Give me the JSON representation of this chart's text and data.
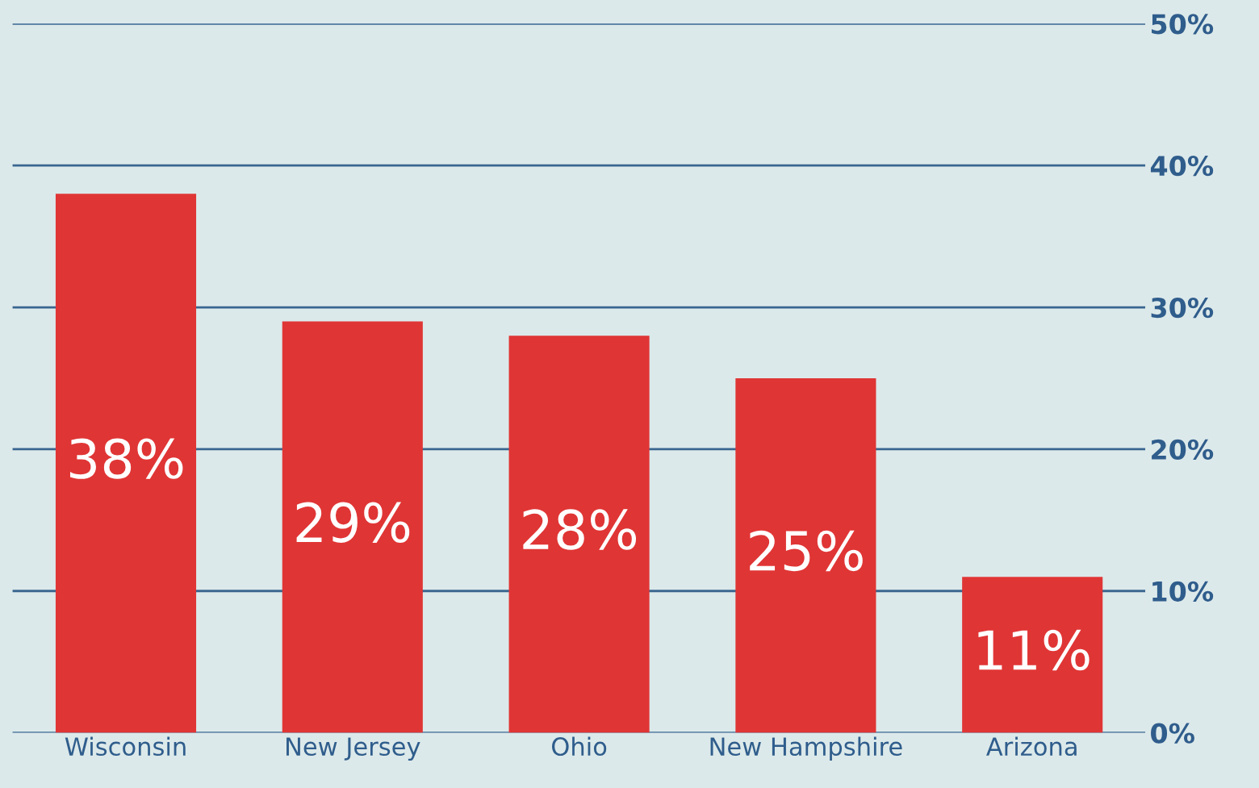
{
  "chart_data": {
    "type": "bar",
    "categories": [
      "Wisconsin",
      "New Jersey",
      "Ohio",
      "New Hampshire",
      "Arizona"
    ],
    "values": [
      38,
      29,
      28,
      25,
      11
    ],
    "value_labels": [
      "38%",
      "29%",
      "28%",
      "25%",
      "11%"
    ],
    "color": "#e03535",
    "ylim": [
      0,
      50
    ],
    "yticks": [
      {
        "value": 0,
        "label": "0%"
      },
      {
        "value": 10,
        "label": "10%"
      },
      {
        "value": 20,
        "label": "20%"
      },
      {
        "value": 30,
        "label": "30%"
      },
      {
        "value": 40,
        "label": "40%"
      },
      {
        "value": 50,
        "label": "50%"
      }
    ],
    "grid": "y"
  }
}
